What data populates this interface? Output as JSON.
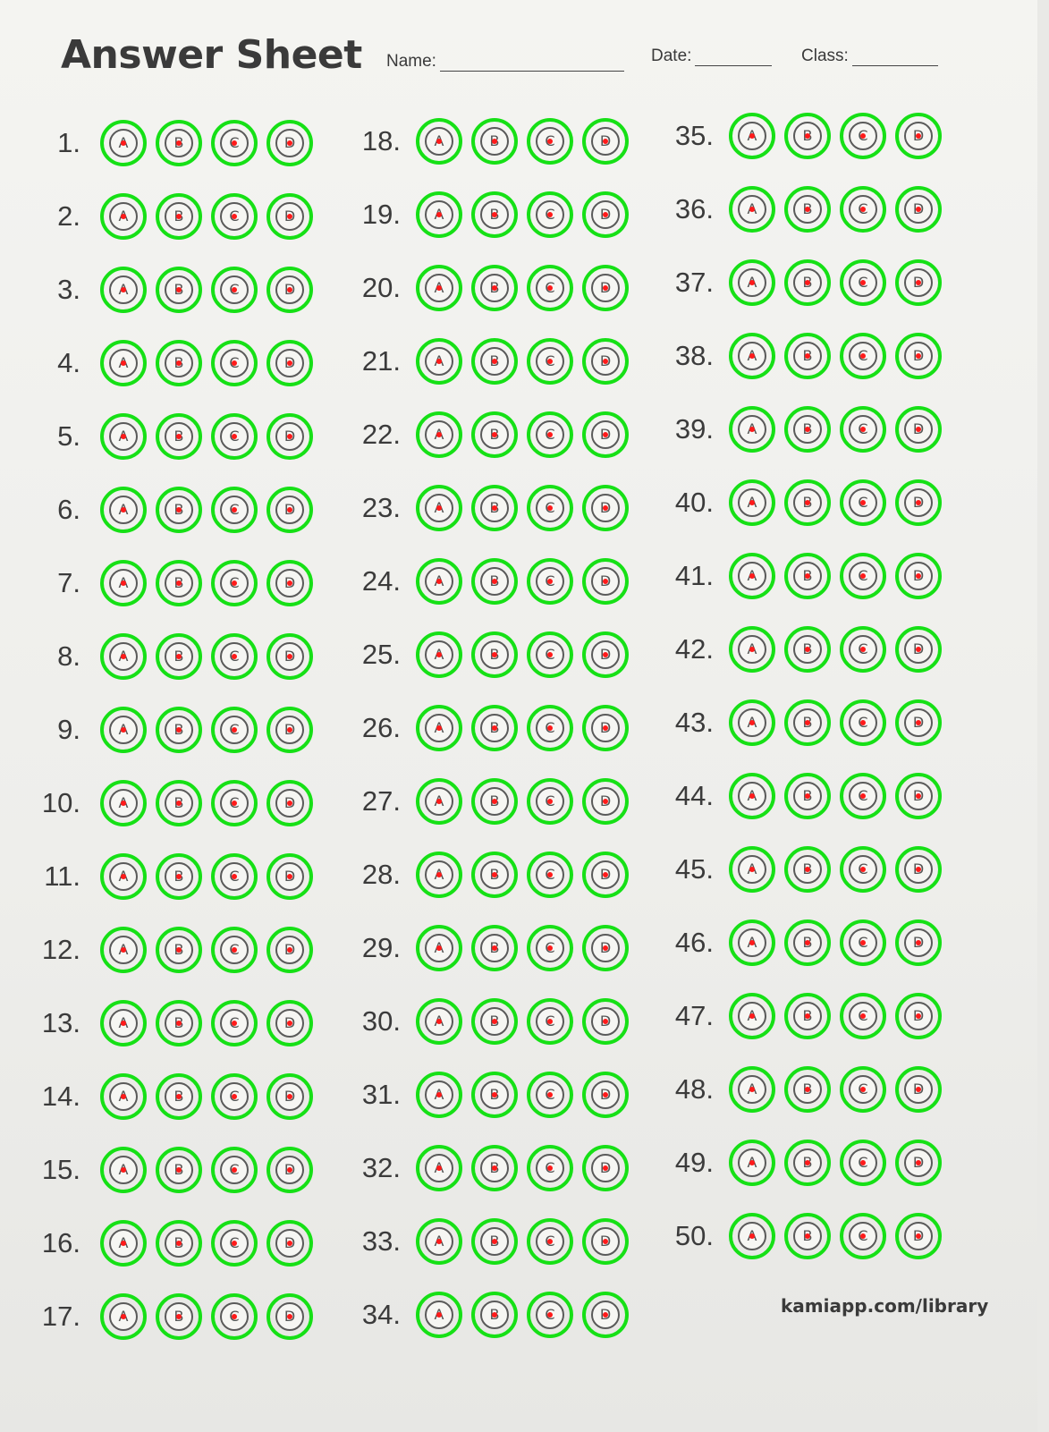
{
  "header": {
    "title": "Answer Sheet",
    "name_label": "Name:",
    "date_label": "Date:",
    "class_label": "Class:"
  },
  "options": [
    "A",
    "B",
    "C",
    "D"
  ],
  "questions": [
    "1.",
    "2.",
    "3.",
    "4.",
    "5.",
    "6.",
    "7.",
    "8.",
    "9.",
    "10.",
    "11.",
    "12.",
    "13.",
    "14.",
    "15.",
    "16.",
    "17.",
    "18.",
    "19.",
    "20.",
    "21.",
    "22.",
    "23.",
    "24.",
    "25.",
    "26.",
    "27.",
    "28.",
    "29.",
    "30.",
    "31.",
    "32.",
    "33.",
    "34.",
    "35.",
    "36.",
    "37.",
    "38.",
    "39.",
    "40.",
    "41.",
    "42.",
    "43.",
    "44.",
    "45.",
    "46.",
    "47.",
    "48.",
    "49.",
    "50."
  ],
  "colors": {
    "detection_ring": "#16e016",
    "center_dot": "#ff1a1a"
  },
  "footer": {
    "text": "kamiapp.com/library"
  }
}
